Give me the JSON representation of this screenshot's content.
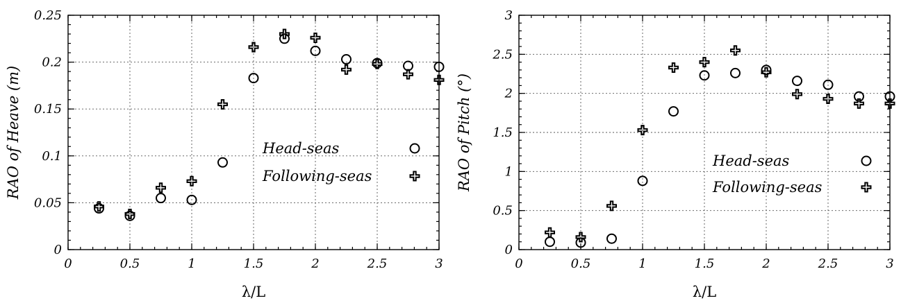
{
  "chart_data": [
    {
      "type": "scatter",
      "xlabel": "λ/L",
      "ylabel": "RAO of Heave (m)",
      "xlim": [
        0,
        3
      ],
      "ylim": [
        0,
        0.25
      ],
      "xticks": [
        "0",
        "0.5",
        "1",
        "1.5",
        "2",
        "2.5",
        "3"
      ],
      "yticks": [
        "0",
        "0.05",
        "0.1",
        "0.15",
        "0.2",
        "0.25"
      ],
      "grid": true,
      "legend_position": "center-right",
      "series": [
        {
          "name": "Head-seas",
          "marker": "circle",
          "x": [
            0.25,
            0.5,
            0.75,
            1.0,
            1.25,
            1.5,
            1.75,
            2.0,
            2.25,
            2.5,
            2.75,
            3.0
          ],
          "y": [
            0.044,
            0.036,
            0.055,
            0.053,
            0.093,
            0.183,
            0.225,
            0.212,
            0.203,
            0.199,
            0.196,
            0.195
          ]
        },
        {
          "name": "Following-seas",
          "marker": "plus",
          "x": [
            0.25,
            0.5,
            0.75,
            1.0,
            1.25,
            1.5,
            1.75,
            2.0,
            2.25,
            2.5,
            2.75,
            3.0
          ],
          "y": [
            0.046,
            0.038,
            0.066,
            0.073,
            0.155,
            0.216,
            0.23,
            0.226,
            0.192,
            0.198,
            0.187,
            0.181
          ]
        }
      ]
    },
    {
      "type": "scatter",
      "xlabel": "λ/L",
      "ylabel": "RAO of Pitch (°)",
      "xlim": [
        0,
        3
      ],
      "ylim": [
        0,
        3
      ],
      "xticks": [
        "0",
        "0.5",
        "1",
        "1.5",
        "2",
        "2.5",
        "3"
      ],
      "yticks": [
        "0",
        "0.5",
        "1",
        "1.5",
        "2",
        "2.5",
        "3"
      ],
      "grid": true,
      "legend_position": "center-right",
      "series": [
        {
          "name": "Head-seas",
          "marker": "circle",
          "x": [
            0.25,
            0.5,
            0.75,
            1.0,
            1.25,
            1.5,
            1.75,
            2.0,
            2.25,
            2.5,
            2.75,
            3.0
          ],
          "y": [
            0.1,
            0.09,
            0.14,
            0.88,
            1.77,
            2.23,
            2.26,
            2.3,
            2.16,
            2.11,
            1.96,
            1.96
          ]
        },
        {
          "name": "Following-seas",
          "marker": "plus",
          "x": [
            0.25,
            0.5,
            0.75,
            1.0,
            1.25,
            1.5,
            1.75,
            2.0,
            2.25,
            2.5,
            2.75,
            3.0
          ],
          "y": [
            0.22,
            0.16,
            0.56,
            1.53,
            2.33,
            2.4,
            2.55,
            2.27,
            1.99,
            1.93,
            1.87,
            1.87
          ]
        }
      ]
    }
  ]
}
